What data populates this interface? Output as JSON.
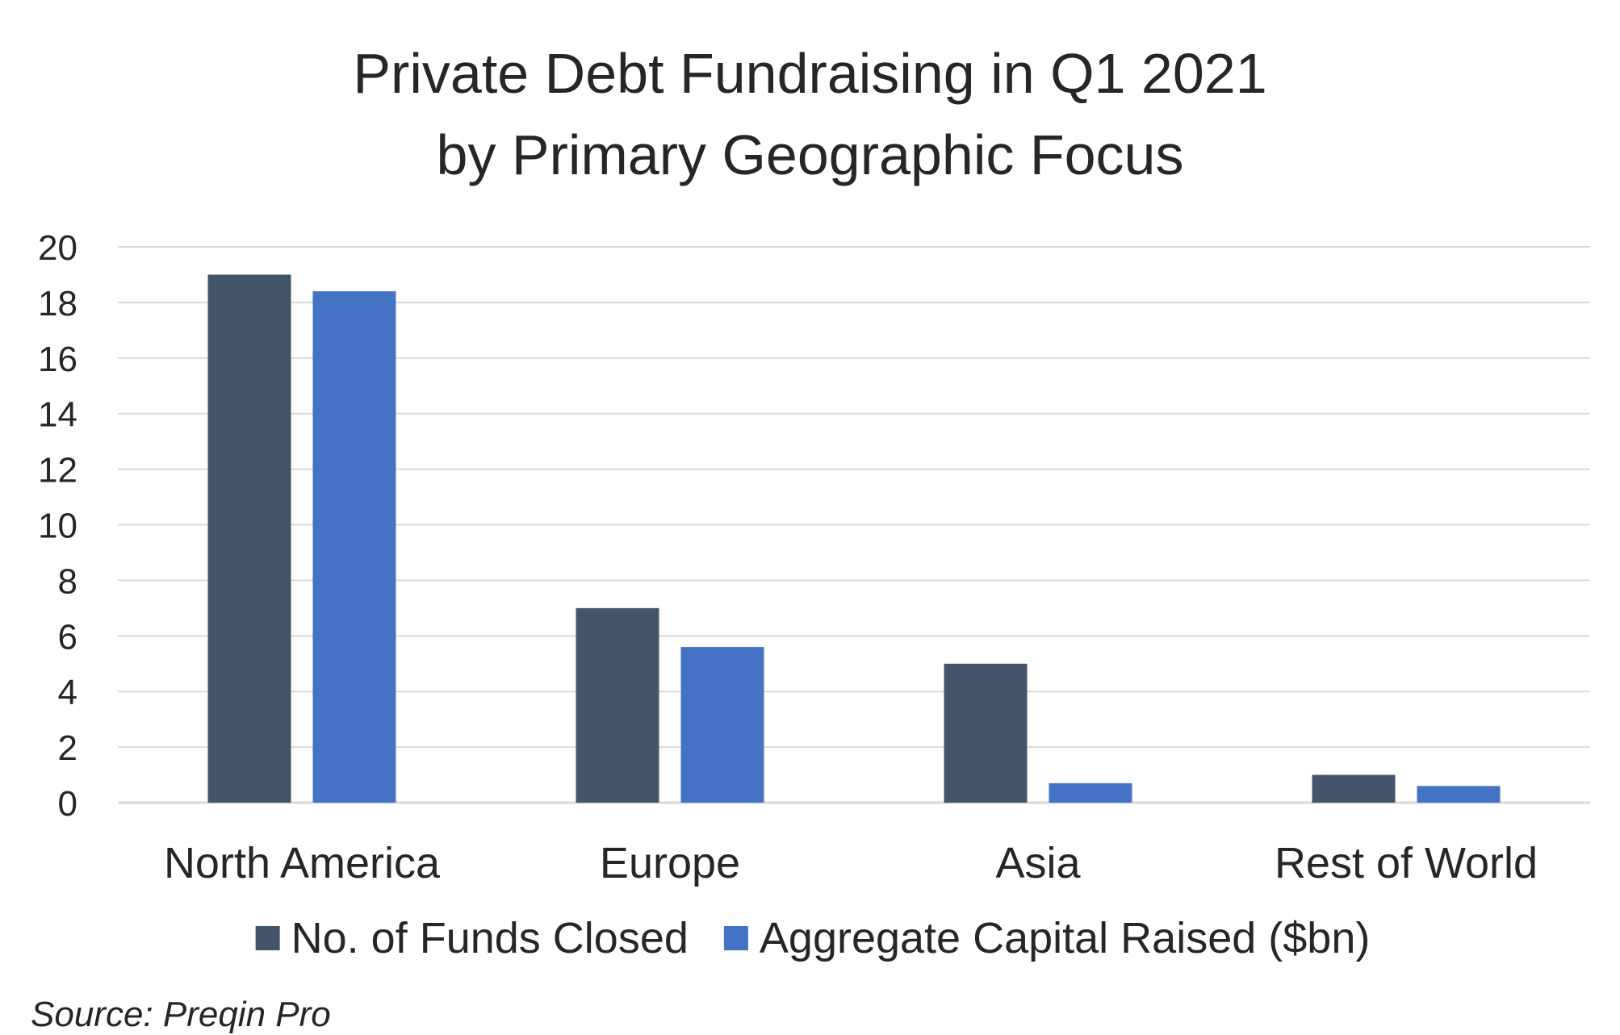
{
  "chart_data": {
    "type": "bar",
    "title": "Private Debt Fundraising in Q1 2021",
    "subtitle": "by Primary Geographic Focus",
    "categories": [
      "North America",
      "Europe",
      "Asia",
      "Rest of World"
    ],
    "series": [
      {
        "name": "No. of Funds Closed",
        "color": "#44546A",
        "values": [
          19,
          7,
          5,
          1
        ]
      },
      {
        "name": "Aggregate Capital Raised ($bn)",
        "color": "#4472C4",
        "values": [
          18.4,
          5.6,
          0.7,
          0.6
        ]
      }
    ],
    "ylim": [
      0,
      20
    ],
    "yticks": [
      0,
      2,
      4,
      6,
      8,
      10,
      12,
      14,
      16,
      18,
      20
    ],
    "grid": true,
    "legend_position": "bottom"
  },
  "source": "Source: Preqin Pro"
}
